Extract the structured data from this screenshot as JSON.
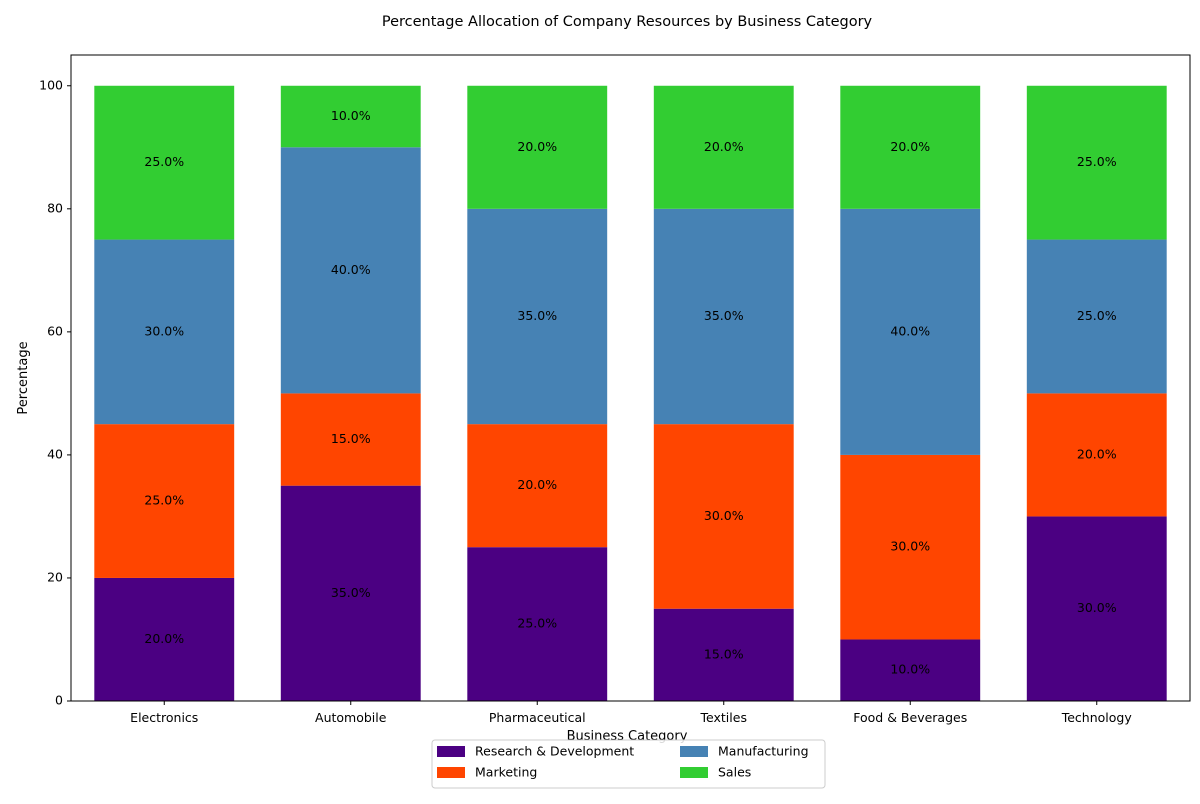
{
  "chart_data": {
    "type": "bar",
    "stacked": true,
    "title": "Percentage Allocation of Company Resources by Business Category",
    "xlabel": "Business Category",
    "ylabel": "Percentage",
    "categories": [
      "Electronics",
      "Automobile",
      "Pharmaceutical",
      "Textiles",
      "Food & Beverages",
      "Technology"
    ],
    "series": [
      {
        "name": "Research & Development",
        "color": "#4b0082",
        "values": [
          20,
          35,
          25,
          15,
          10,
          30
        ]
      },
      {
        "name": "Marketing",
        "color": "#ff4500",
        "values": [
          25,
          15,
          20,
          30,
          30,
          20
        ]
      },
      {
        "name": "Manufacturing",
        "color": "#4682b4",
        "values": [
          30,
          40,
          35,
          35,
          40,
          25
        ]
      },
      {
        "name": "Sales",
        "color": "#32cd32",
        "values": [
          25,
          10,
          20,
          20,
          20,
          25
        ]
      }
    ],
    "ylim": [
      0,
      105
    ],
    "yticks": [
      0,
      20,
      40,
      60,
      80,
      100
    ],
    "data_label_suffix": "%",
    "grid": false,
    "legend_position": "bottom-center"
  }
}
